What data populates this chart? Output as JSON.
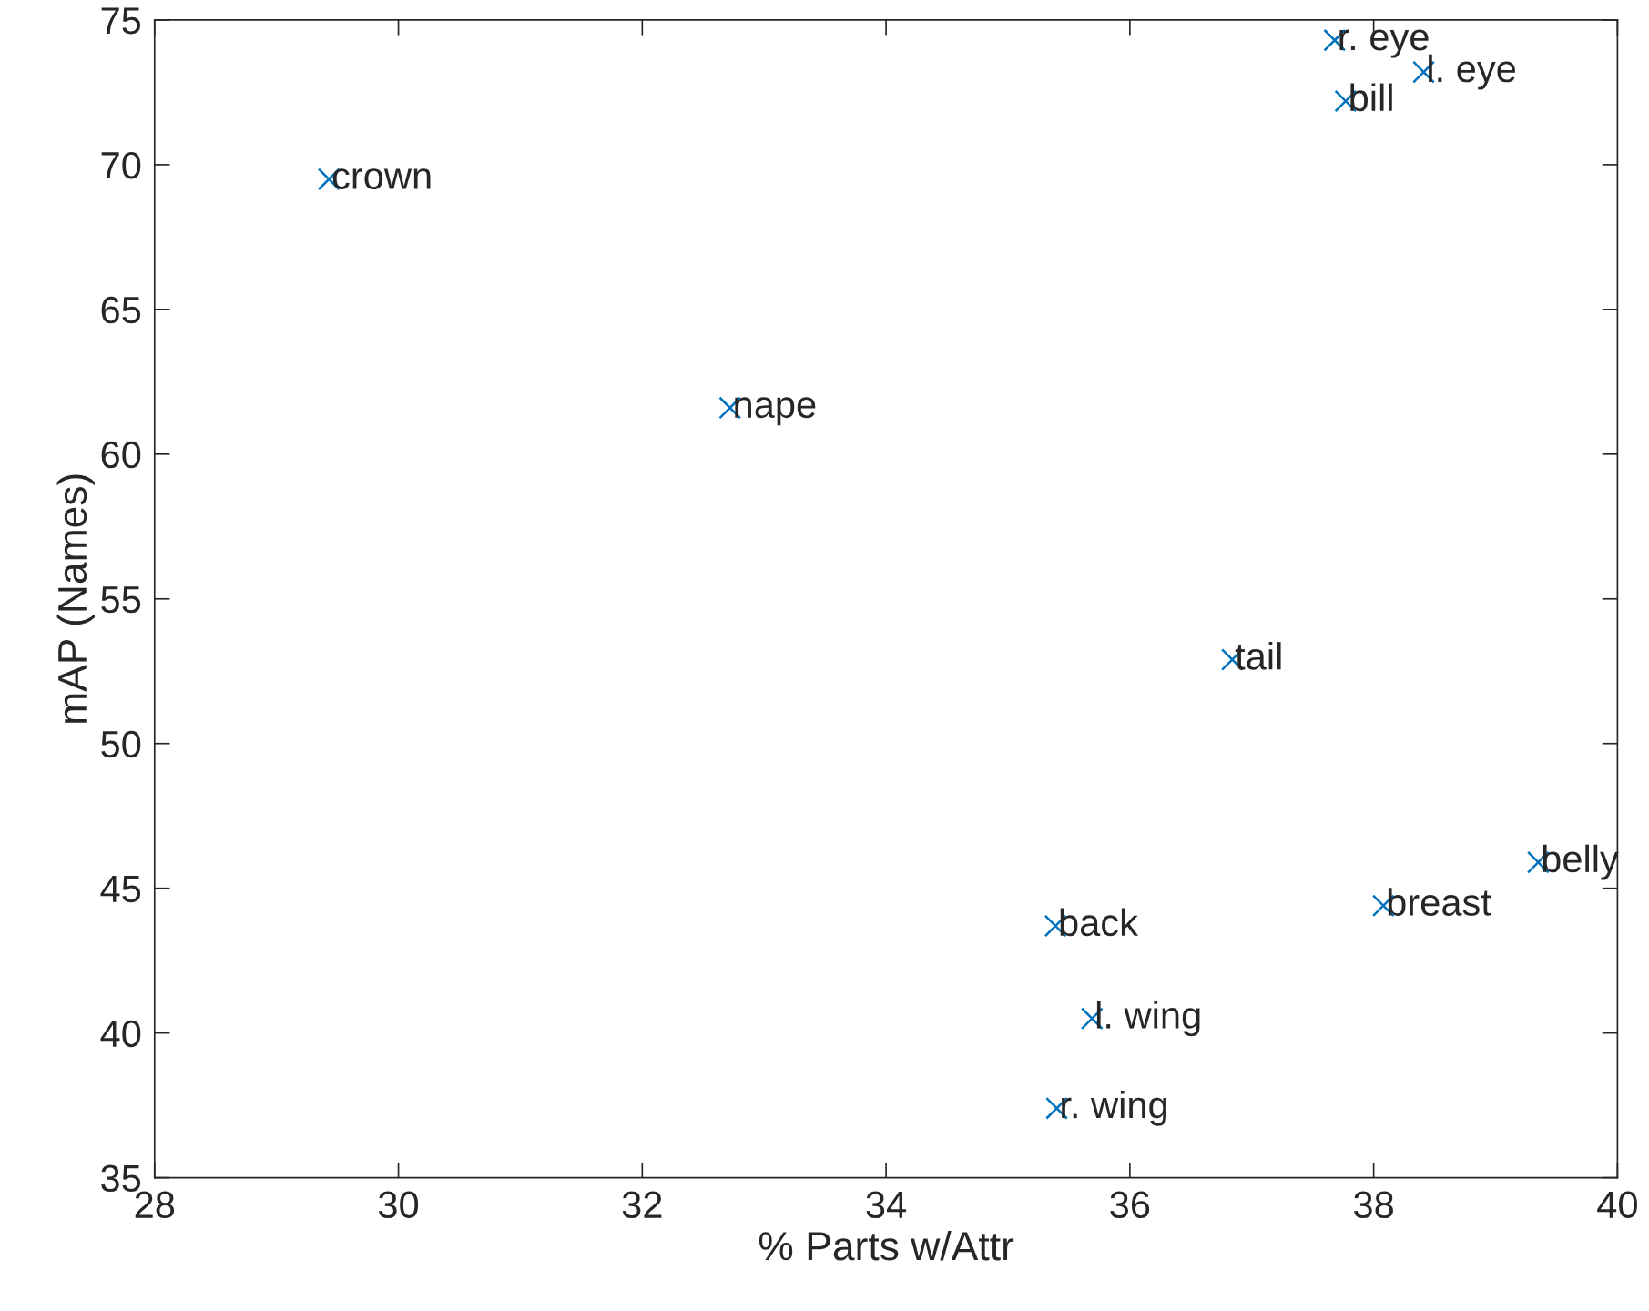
{
  "chart_data": {
    "type": "scatter",
    "xlabel": "% Parts w/Attr",
    "ylabel": "mAP (Names)",
    "x": [
      37.68,
      38.41,
      37.77,
      29.43,
      32.72,
      36.84,
      39.35,
      38.08,
      35.39,
      35.69,
      35.4
    ],
    "series": [
      {
        "color": "#0072bd",
        "values": [
          74.3,
          73.2,
          72.2,
          69.5,
          61.6,
          52.9,
          45.9,
          44.4,
          43.7,
          40.5,
          37.4
        ]
      }
    ],
    "annotations": [
      {
        "text": "r. eye",
        "x": 37.68,
        "y": 74.3
      },
      {
        "text": "l. eye",
        "x": 38.41,
        "y": 73.2
      },
      {
        "text": "bill",
        "x": 37.77,
        "y": 72.2
      },
      {
        "text": "crown",
        "x": 29.43,
        "y": 69.5
      },
      {
        "text": "nape",
        "x": 32.72,
        "y": 61.6
      },
      {
        "text": "tail",
        "x": 36.84,
        "y": 52.9
      },
      {
        "text": "belly",
        "x": 39.35,
        "y": 45.9
      },
      {
        "text": "breast",
        "x": 38.08,
        "y": 44.4
      },
      {
        "text": "back",
        "x": 35.39,
        "y": 43.7
      },
      {
        "text": "l. wing",
        "x": 35.69,
        "y": 40.5
      },
      {
        "text": "r. wing",
        "x": 35.4,
        "y": 37.4
      }
    ],
    "xlim": [
      28,
      40
    ],
    "xticks": [
      28,
      30,
      32,
      34,
      36,
      38,
      40
    ],
    "ylim": [
      35,
      75
    ],
    "yticks": [
      35,
      40,
      45,
      50,
      55,
      60,
      65,
      70,
      75
    ],
    "marker": "cross",
    "grid": false,
    "legend": false
  }
}
